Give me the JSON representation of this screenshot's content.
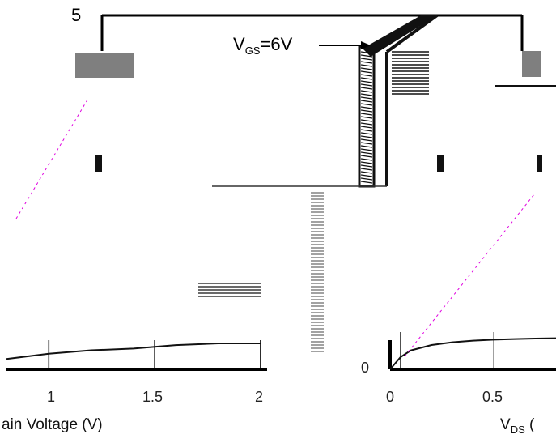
{
  "chart_data": [
    {
      "type": "line",
      "title": "",
      "xlabel": "ain Voltage (V)",
      "ylabel": "",
      "xlim": [
        0.8,
        2.05
      ],
      "x_ticks": [
        "1",
        "1.5",
        "2"
      ],
      "top_label": "5",
      "grid": true,
      "series": [
        {
          "x": [
            0.8,
            1.0,
            1.2,
            1.4,
            1.5,
            1.6,
            1.8,
            2.0
          ],
          "y": [
            0.06,
            0.09,
            0.11,
            0.12,
            0.13,
            0.14,
            0.15,
            0.15
          ]
        }
      ]
    },
    {
      "type": "line",
      "title": "",
      "xlabel_main": "V",
      "xlabel_sub": "DS",
      "xlabel_unit": " (",
      "ylabel": "",
      "xlim": [
        0,
        0.8
      ],
      "x_ticks": [
        "0",
        "0.5"
      ],
      "y_tick": "0",
      "annotation_main": "V",
      "annotation_sub": "GS",
      "annotation_value": "=6V",
      "grid": true,
      "series": [
        {
          "x": [
            0,
            0.05,
            0.1,
            0.2,
            0.3,
            0.4,
            0.5,
            0.6,
            0.7,
            0.8
          ],
          "y": [
            0,
            0.45,
            0.7,
            0.9,
            1.0,
            1.06,
            1.1,
            1.12,
            1.14,
            1.15
          ]
        }
      ]
    }
  ],
  "colors": {
    "axis": "#000000",
    "line": "#111111",
    "accent": "#e000e0",
    "box": "#7f7f7f"
  }
}
